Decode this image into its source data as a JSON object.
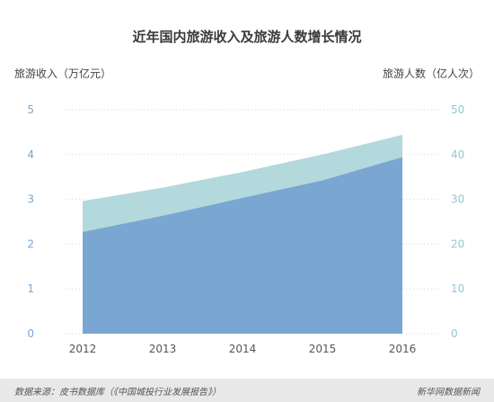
{
  "chart_data": {
    "type": "area",
    "title": "近年国内旅游收入及旅游人数增长情况",
    "left_axis_label": "旅游收入（万亿元）",
    "right_axis_label": "旅游人数（亿人次）",
    "categories": [
      "2012",
      "2013",
      "2014",
      "2015",
      "2016"
    ],
    "left_ylim": [
      0,
      5
    ],
    "right_ylim": [
      0,
      50
    ],
    "left_ticks": [
      "0",
      "1",
      "2",
      "3",
      "4",
      "5"
    ],
    "right_ticks": [
      "0",
      "10",
      "20",
      "30",
      "40",
      "50"
    ],
    "series": [
      {
        "axis": "right",
        "color": "#b3d9dd",
        "values": [
          29.6,
          32.6,
          36.1,
          40.0,
          44.4
        ]
      },
      {
        "axis": "left",
        "color": "#7aa6d2",
        "values": [
          2.27,
          2.63,
          3.03,
          3.42,
          3.94
        ]
      }
    ],
    "grid": true
  },
  "footer": {
    "source": "数据来源：皮书数据库（《中国城投行业发展报告》）",
    "brand": "新华网数据新闻"
  }
}
